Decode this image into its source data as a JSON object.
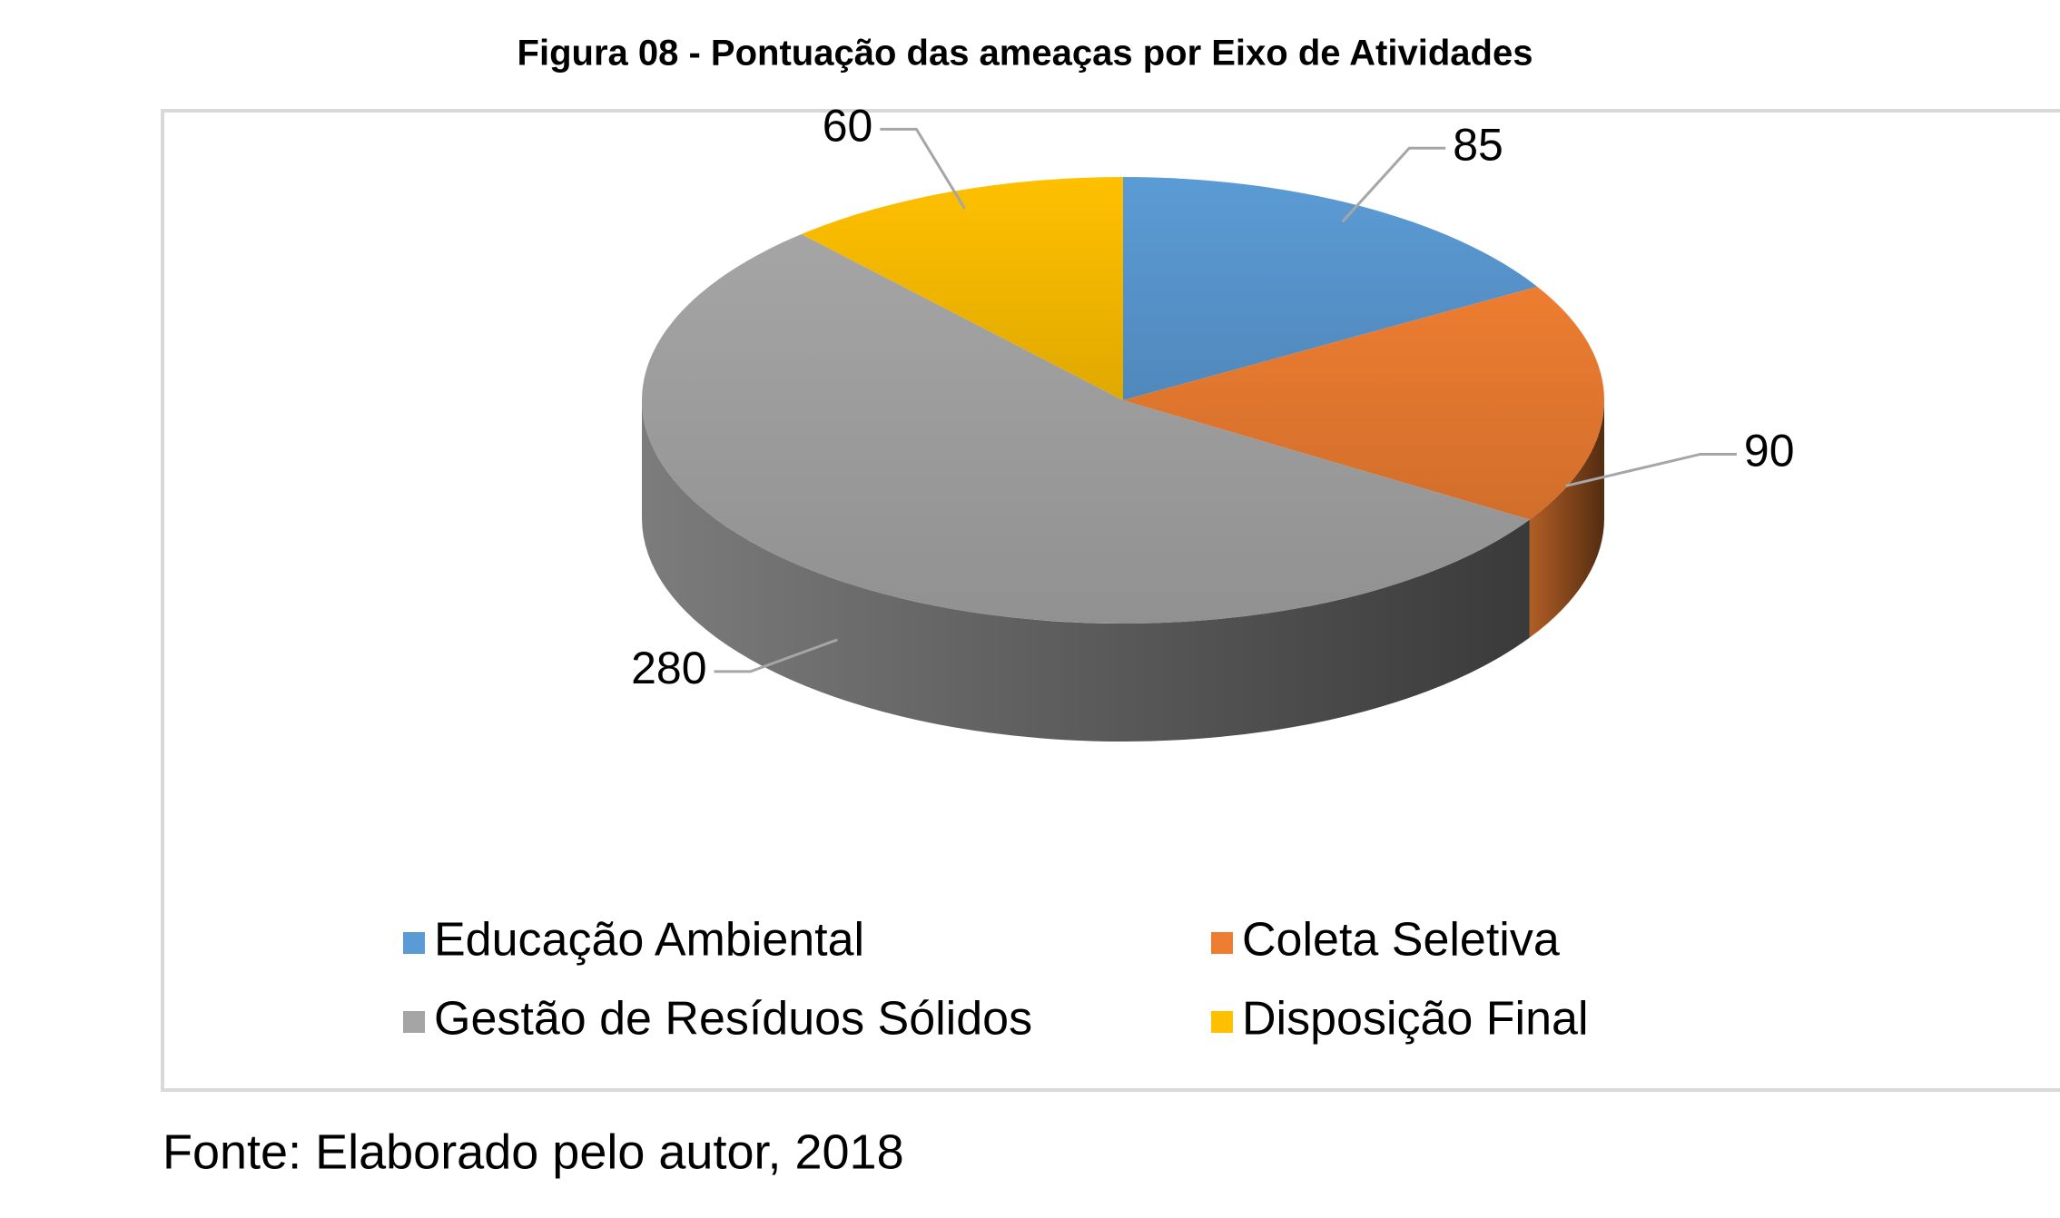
{
  "chart_data": {
    "type": "pie",
    "title": "Figura 08 - Pontuação das ameaças por Eixo de Atividades",
    "categories": [
      "Educação Ambiental",
      "Coleta Seletiva",
      "Gestão de Resíduos Sólidos",
      "Disposição Final"
    ],
    "values": [
      85,
      90,
      280,
      60
    ],
    "colors": [
      "#5b9bd5",
      "#ed7d31",
      "#a5a5a5",
      "#ffc000"
    ],
    "source": "Fonte: Elaborado pelo autor, 2018"
  }
}
